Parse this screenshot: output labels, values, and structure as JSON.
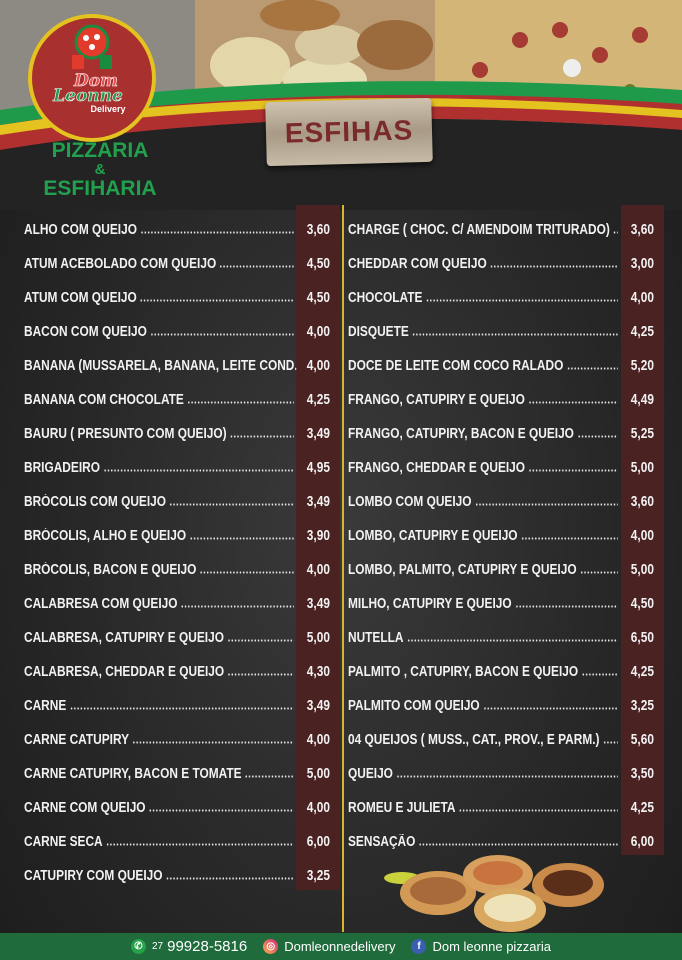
{
  "brand": {
    "logo_text": "Dom Leonne",
    "logo_sub": "Delivery",
    "tagline_line1": "PIZZARIA",
    "tagline_amp": "&",
    "tagline_line2": "ESFIHARIA"
  },
  "section_title": "ESFIHAS",
  "colors": {
    "accent_red": "#7a2a2a",
    "price_band": "#4a2222",
    "green": "#21a04d",
    "yellow": "#d8b531",
    "footer": "#1f6b3b"
  },
  "menu": {
    "left": [
      {
        "name": "ALHO COM QUEIJO",
        "price": "3,60"
      },
      {
        "name": "ATUM ACEBOLADO COM QUEIJO",
        "price": "4,50"
      },
      {
        "name": "ATUM COM QUEIJO",
        "price": "4,50"
      },
      {
        "name": "BACON COM QUEIJO",
        "price": "4,00"
      },
      {
        "name": "BANANA (MUSSARELA, BANANA, LEITE COND.)",
        "price": "4,00"
      },
      {
        "name": "BANANA COM CHOCOLATE",
        "price": "4,25"
      },
      {
        "name": "BAURU ( PRESUNTO COM QUEIJO)",
        "price": "3,49"
      },
      {
        "name": "BRIGADEIRO",
        "price": "4,95"
      },
      {
        "name": "BRÓCOLIS COM QUEIJO",
        "price": "3,49"
      },
      {
        "name": "BRÓCOLIS, ALHO E QUEIJO",
        "price": "3,90"
      },
      {
        "name": "BRÓCOLIS, BACON E QUEIJO",
        "price": "4,00"
      },
      {
        "name": "CALABRESA COM QUEIJO",
        "price": "3,49"
      },
      {
        "name": "CALABRESA, CATUPIRY E QUEIJO",
        "price": "5,00"
      },
      {
        "name": "CALABRESA, CHEDDAR E QUEIJO",
        "price": "4,30"
      },
      {
        "name": "CARNE",
        "price": "3,49"
      },
      {
        "name": "CARNE CATUPIRY",
        "price": "4,00"
      },
      {
        "name": "CARNE CATUPIRY, BACON E TOMATE",
        "price": "5,00"
      },
      {
        "name": "CARNE COM QUEIJO",
        "price": "4,00"
      },
      {
        "name": "CARNE SECA",
        "price": "6,00"
      },
      {
        "name": "CATUPIRY COM QUEIJO",
        "price": "3,25"
      }
    ],
    "right": [
      {
        "name": "CHARGE ( CHOC. C/ AMENDOIM TRITURADO)",
        "price": "3,60"
      },
      {
        "name": "CHEDDAR COM QUEIJO",
        "price": "3,00"
      },
      {
        "name": "CHOCOLATE",
        "price": "4,00"
      },
      {
        "name": "DISQUETE",
        "price": "4,25"
      },
      {
        "name": "DOCE DE LEITE COM COCO RALADO",
        "price": "5,20"
      },
      {
        "name": "FRANGO, CATUPIRY E QUEIJO",
        "price": "4,49"
      },
      {
        "name": "FRANGO, CATUPIRY, BACON E QUEIJO",
        "price": "5,25"
      },
      {
        "name": "FRANGO, CHEDDAR E QUEIJO",
        "price": "5,00"
      },
      {
        "name": "LOMBO COM QUEIJO",
        "price": "3,60"
      },
      {
        "name": "LOMBO, CATUPIRY E QUEIJO",
        "price": "4,00"
      },
      {
        "name": "LOMBO, PALMITO, CATUPIRY E QUEIJO",
        "price": "5,00"
      },
      {
        "name": "MILHO, CATUPIRY E QUEIJO",
        "price": "4,50"
      },
      {
        "name": "NUTELLA",
        "price": "6,50"
      },
      {
        "name": "PALMITO , CATUPIRY, BACON E QUEIJO",
        "price": "4,25"
      },
      {
        "name": "PALMITO COM QUEIJO",
        "price": "3,25"
      },
      {
        "name": "04 QUEIJOS ( MUSS., CAT., PROV., E PARM.)",
        "price": "5,60"
      },
      {
        "name": "QUEIJO",
        "price": "3,50"
      },
      {
        "name": "ROMEU E JULIETA",
        "price": "4,25"
      },
      {
        "name": "SENSAÇÃO",
        "price": "6,00"
      }
    ]
  },
  "footer": {
    "phone_prefix": "27",
    "phone": "99928-5816",
    "instagram": "Domleonnedelivery",
    "facebook": "Dom leonne pizzaria",
    "icons": [
      "whatsapp-icon",
      "instagram-icon",
      "facebook-icon"
    ]
  }
}
